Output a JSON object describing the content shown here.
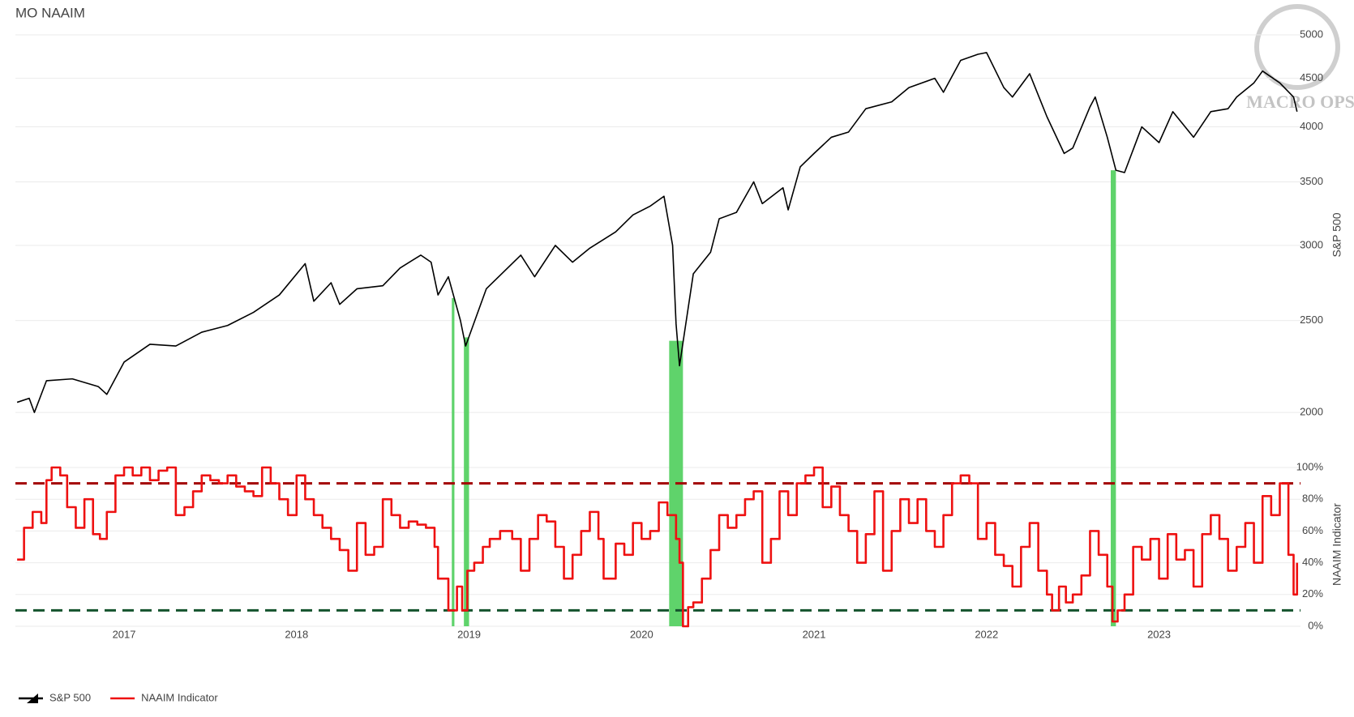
{
  "chart_data": [
    {
      "type": "line",
      "title": "MO NAAIM",
      "y_label": "S&P 500",
      "log_scale": true,
      "grid": true,
      "legend": "bottom-left",
      "watermark": "MACRO OPS",
      "xlim": [
        2016.37,
        2023.82
      ],
      "ylim": [
        1950,
        5130
      ],
      "yticks": [
        2000,
        2500,
        3000,
        3500,
        4000,
        4500,
        5000
      ],
      "highlight_color": "#5fd36b",
      "highlights": [
        [
          2018.9,
          2018.915
        ],
        [
          2018.97,
          2019.0
        ],
        [
          2020.16,
          2020.24
        ],
        [
          2022.72,
          2022.75
        ]
      ],
      "series": [
        {
          "name": "S&P 500",
          "color": "#000000",
          "x": [
            2016.38,
            2016.45,
            2016.48,
            2016.55,
            2016.7,
            2016.85,
            2016.9,
            2017.0,
            2017.15,
            2017.3,
            2017.45,
            2017.6,
            2017.75,
            2017.9,
            2018.05,
            2018.1,
            2018.2,
            2018.25,
            2018.35,
            2018.5,
            2018.6,
            2018.72,
            2018.78,
            2018.82,
            2018.88,
            2018.95,
            2018.98,
            2019.1,
            2019.3,
            2019.38,
            2019.5,
            2019.6,
            2019.7,
            2019.85,
            2019.95,
            2020.05,
            2020.13,
            2020.18,
            2020.2,
            2020.22,
            2020.3,
            2020.4,
            2020.45,
            2020.55,
            2020.65,
            2020.7,
            2020.82,
            2020.85,
            2020.92,
            2021.0,
            2021.1,
            2021.2,
            2021.3,
            2021.45,
            2021.55,
            2021.7,
            2021.75,
            2021.85,
            2021.95,
            2022.0,
            2022.1,
            2022.15,
            2022.25,
            2022.35,
            2022.45,
            2022.5,
            2022.6,
            2022.63,
            2022.7,
            2022.75,
            2022.8,
            2022.9,
            2023.0,
            2023.08,
            2023.2,
            2023.3,
            2023.4,
            2023.45,
            2023.55,
            2023.6,
            2023.7,
            2023.78,
            2023.8
          ],
          "values": [
            2050,
            2070,
            2000,
            2160,
            2170,
            2130,
            2090,
            2260,
            2360,
            2350,
            2430,
            2470,
            2550,
            2660,
            2870,
            2620,
            2740,
            2600,
            2700,
            2720,
            2840,
            2930,
            2880,
            2660,
            2780,
            2500,
            2350,
            2700,
            2930,
            2780,
            3000,
            2880,
            2980,
            3100,
            3230,
            3300,
            3380,
            3000,
            2480,
            2240,
            2800,
            2950,
            3200,
            3250,
            3500,
            3320,
            3450,
            3270,
            3630,
            3750,
            3900,
            3950,
            4180,
            4250,
            4400,
            4500,
            4350,
            4700,
            4770,
            4790,
            4400,
            4300,
            4550,
            4100,
            3750,
            3800,
            4200,
            4300,
            3900,
            3600,
            3580,
            4000,
            3850,
            4150,
            3900,
            4150,
            4180,
            4300,
            4450,
            4580,
            4450,
            4300,
            4150
          ]
        }
      ]
    },
    {
      "type": "step",
      "y_label": "NAAIM Indicator",
      "grid": true,
      "xlim": [
        2016.37,
        2023.82
      ],
      "xticks": [
        2017,
        2018,
        2019,
        2020,
        2021,
        2022,
        2023
      ],
      "ylim": [
        0,
        100
      ],
      "yticks": [
        {
          "value": 0,
          "label": "0%"
        },
        {
          "value": 20,
          "label": "20%"
        },
        {
          "value": 40,
          "label": "40%"
        },
        {
          "value": 60,
          "label": "60%"
        },
        {
          "value": 80,
          "label": "80%"
        },
        {
          "value": 100,
          "label": "100%"
        }
      ],
      "thresholds": [
        {
          "value": 90,
          "color": "#a30000"
        },
        {
          "value": 10,
          "color": "#14532d"
        }
      ],
      "series": [
        {
          "name": "NAAIM Indicator",
          "color": "#ee1111",
          "x": [
            2016.38,
            2016.42,
            2016.47,
            2016.52,
            2016.55,
            2016.58,
            2016.63,
            2016.67,
            2016.72,
            2016.77,
            2016.82,
            2016.86,
            2016.9,
            2016.95,
            2017.0,
            2017.05,
            2017.1,
            2017.15,
            2017.2,
            2017.25,
            2017.3,
            2017.35,
            2017.4,
            2017.45,
            2017.5,
            2017.55,
            2017.6,
            2017.65,
            2017.7,
            2017.75,
            2017.8,
            2017.85,
            2017.9,
            2017.95,
            2018.0,
            2018.05,
            2018.1,
            2018.15,
            2018.2,
            2018.25,
            2018.3,
            2018.35,
            2018.4,
            2018.45,
            2018.5,
            2018.55,
            2018.6,
            2018.65,
            2018.7,
            2018.75,
            2018.8,
            2018.82,
            2018.88,
            2018.93,
            2018.96,
            2018.99,
            2019.03,
            2019.08,
            2019.12,
            2019.18,
            2019.25,
            2019.3,
            2019.35,
            2019.4,
            2019.45,
            2019.5,
            2019.55,
            2019.6,
            2019.65,
            2019.7,
            2019.75,
            2019.78,
            2019.85,
            2019.9,
            2019.95,
            2020.0,
            2020.05,
            2020.1,
            2020.15,
            2020.2,
            2020.22,
            2020.24,
            2020.27,
            2020.3,
            2020.35,
            2020.4,
            2020.45,
            2020.5,
            2020.55,
            2020.6,
            2020.65,
            2020.7,
            2020.75,
            2020.8,
            2020.85,
            2020.9,
            2020.95,
            2021.0,
            2021.05,
            2021.1,
            2021.15,
            2021.2,
            2021.25,
            2021.3,
            2021.35,
            2021.4,
            2021.45,
            2021.5,
            2021.55,
            2021.6,
            2021.65,
            2021.7,
            2021.75,
            2021.8,
            2021.85,
            2021.9,
            2021.95,
            2022.0,
            2022.05,
            2022.1,
            2022.15,
            2022.2,
            2022.25,
            2022.3,
            2022.35,
            2022.38,
            2022.42,
            2022.46,
            2022.5,
            2022.55,
            2022.6,
            2022.65,
            2022.7,
            2022.73,
            2022.76,
            2022.8,
            2022.85,
            2022.9,
            2022.95,
            2023.0,
            2023.05,
            2023.1,
            2023.15,
            2023.2,
            2023.25,
            2023.3,
            2023.35,
            2023.4,
            2023.45,
            2023.5,
            2023.55,
            2023.6,
            2023.65,
            2023.7,
            2023.75,
            2023.78,
            2023.8
          ],
          "values": [
            42,
            62,
            72,
            65,
            92,
            100,
            95,
            75,
            62,
            80,
            58,
            55,
            72,
            95,
            100,
            95,
            100,
            92,
            98,
            100,
            70,
            75,
            85,
            95,
            92,
            90,
            95,
            88,
            85,
            82,
            100,
            90,
            80,
            70,
            95,
            80,
            70,
            62,
            55,
            48,
            35,
            65,
            45,
            50,
            80,
            70,
            62,
            66,
            64,
            62,
            50,
            30,
            10,
            25,
            10,
            35,
            40,
            50,
            55,
            60,
            55,
            35,
            55,
            70,
            66,
            50,
            30,
            45,
            60,
            72,
            55,
            30,
            52,
            45,
            65,
            55,
            60,
            78,
            70,
            55,
            40,
            0,
            12,
            15,
            30,
            48,
            70,
            62,
            70,
            80,
            85,
            40,
            55,
            85,
            70,
            90,
            95,
            100,
            75,
            88,
            70,
            60,
            40,
            58,
            85,
            35,
            60,
            80,
            65,
            80,
            60,
            50,
            70,
            90,
            95,
            90,
            55,
            65,
            45,
            38,
            25,
            50,
            65,
            35,
            20,
            10,
            25,
            15,
            20,
            32,
            60,
            45,
            25,
            3,
            10,
            20,
            50,
            42,
            55,
            30,
            58,
            42,
            48,
            25,
            58,
            70,
            55,
            35,
            50,
            65,
            40,
            82,
            70,
            90,
            45,
            20,
            40
          ]
        }
      ]
    }
  ]
}
